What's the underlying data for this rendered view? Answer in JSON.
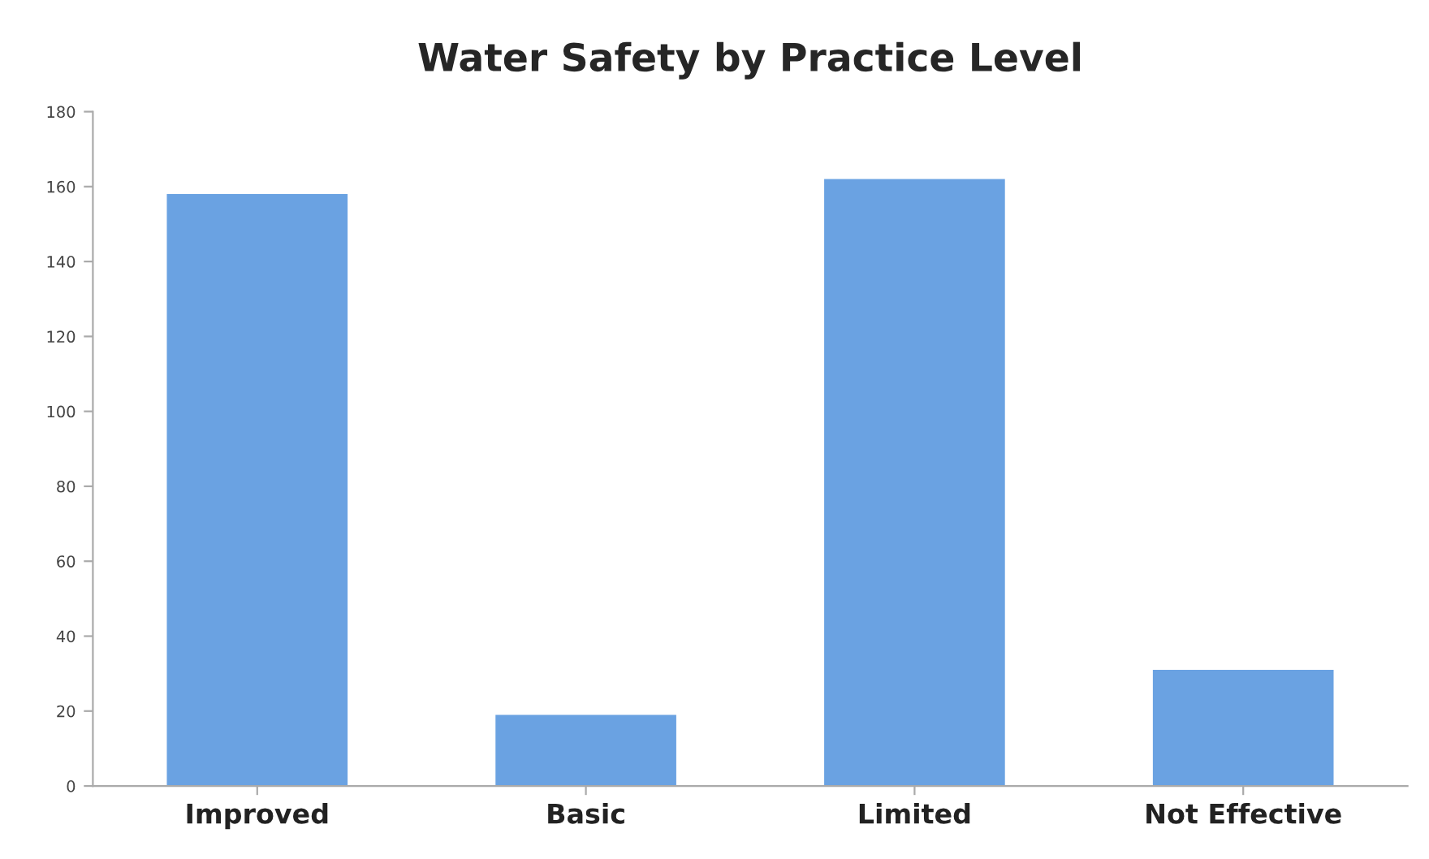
{
  "chart_data": {
    "type": "bar",
    "title": "Water Safety by Practice Level",
    "categories": [
      "Improved",
      "Basic",
      "Limited",
      "Not Effective"
    ],
    "values": [
      158,
      19,
      162,
      31
    ],
    "color": "#6aa2e2",
    "ylim": [
      0,
      180
    ],
    "yticks": [
      0,
      20,
      40,
      60,
      80,
      100,
      120,
      140,
      160,
      180
    ],
    "grid": false
  }
}
